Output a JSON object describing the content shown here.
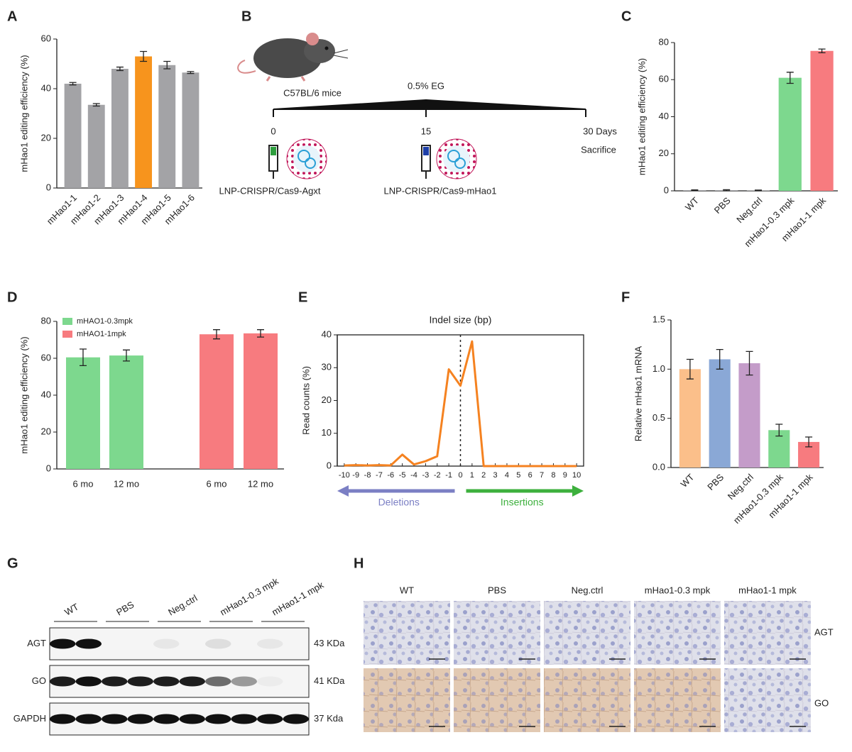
{
  "chart_data": [
    {
      "label": "A",
      "type": "bar",
      "ylabel": "mHao1 editing efficiency (%)",
      "categories": [
        "mHao1-1",
        "mHao1-2",
        "mHao1-3",
        "mHao1-4",
        "mHao1-5",
        "mHao1-6"
      ],
      "values": [
        42,
        33.5,
        48,
        53,
        49.5,
        46.5
      ],
      "errors": [
        0.5,
        0.5,
        0.7,
        2,
        1.5,
        0.4
      ],
      "colors": [
        "#a3a3a6",
        "#a3a3a6",
        "#a3a3a6",
        "#f7941d",
        "#a3a3a6",
        "#a3a3a6"
      ],
      "ylim": [
        0,
        60
      ],
      "yticks": [
        0,
        20,
        40,
        60
      ]
    },
    {
      "label": "C",
      "type": "bar",
      "ylabel": "mHao1 editing efficiency (%)",
      "categories": [
        "WT",
        "PBS",
        "Neg.ctrl",
        "mHao1-0.3 mpk",
        "mHao1-1 mpk"
      ],
      "values": [
        0.3,
        0.3,
        0.2,
        61,
        75.5
      ],
      "errors": [
        0.2,
        0.3,
        0.2,
        3,
        1
      ],
      "colors": [
        "#a3a3a6",
        "#a3a3a6",
        "#a3a3a6",
        "#7dd88e",
        "#f77b7f"
      ],
      "ylim": [
        0,
        80
      ],
      "yticks": [
        0,
        20,
        40,
        60,
        80
      ]
    },
    {
      "label": "D",
      "type": "grouped-bar",
      "ylabel": "mHao1 editing efficiency (%)",
      "categories": [
        "6 mo",
        "12 mo",
        "6 mo",
        "12 mo"
      ],
      "series": [
        {
          "name": "mHAO1-0.3mpk",
          "color": "#7dd88e",
          "values": [
            60.5,
            61.5,
            null,
            null
          ],
          "errors": [
            4.5,
            3,
            null,
            null
          ]
        },
        {
          "name": "mHAO1-1mpk",
          "color": "#f77b7f",
          "values": [
            null,
            null,
            73,
            73.5
          ],
          "errors": [
            null,
            null,
            2.5,
            2
          ]
        }
      ],
      "ylim": [
        0,
        80
      ],
      "yticks": [
        0,
        20,
        40,
        60,
        80
      ]
    },
    {
      "label": "E",
      "type": "line",
      "title": "Indel size (bp)",
      "ylabel": "Read counts (%)",
      "x": [
        -10,
        -9,
        -8,
        -7,
        -6,
        -5,
        -4,
        -3,
        -2,
        -1,
        0,
        1,
        2,
        3,
        4,
        5,
        6,
        7,
        8,
        9,
        10
      ],
      "values": [
        0.2,
        0.3,
        0.2,
        0.3,
        0.2,
        3.5,
        0.5,
        1.5,
        3,
        29.5,
        24.5,
        38,
        0,
        0,
        0,
        0,
        0,
        0,
        0,
        0,
        0
      ],
      "color": "#f58220",
      "xlim": [
        -10.6,
        10.6
      ],
      "ylim": [
        0,
        40
      ],
      "xticks": [
        -10,
        -9,
        -8,
        -7,
        -6,
        -5,
        -4,
        -3,
        -2,
        -1,
        0,
        1,
        2,
        3,
        4,
        5,
        6,
        7,
        8,
        9,
        10
      ],
      "yticks": [
        0,
        10,
        20,
        30,
        40
      ],
      "annotations": [
        {
          "text": "Deletions",
          "color": "#7b7fc4"
        },
        {
          "text": "Insertions",
          "color": "#3db03d"
        }
      ]
    },
    {
      "label": "F",
      "type": "bar",
      "ylabel": "Relative mHao1 mRNA",
      "categories": [
        "WT",
        "PBS",
        "Neg.ctrl",
        "mHao1-0.3 mpk",
        "mHao1-1 mpk"
      ],
      "values": [
        1.0,
        1.1,
        1.06,
        0.38,
        0.26
      ],
      "errors": [
        0.1,
        0.1,
        0.12,
        0.06,
        0.05
      ],
      "colors": [
        "#fbbf8a",
        "#8aa8d6",
        "#c49cc9",
        "#7dd88e",
        "#f77b7f"
      ],
      "ylim": [
        0,
        1.5
      ],
      "yticks": [
        {
          "value": 0,
          "label": "0.0"
        },
        {
          "value": 0.5,
          "label": "0.5"
        },
        {
          "value": 1,
          "label": "1.0"
        },
        {
          "value": 1.5,
          "label": "1.5"
        }
      ]
    }
  ],
  "panel_b": {
    "label": "B",
    "mouse": "C57BL/6 mice",
    "treatment": "0.5% EG",
    "timepoints": [
      "0",
      "15",
      "30 Days"
    ],
    "endpoint": "Sacrifice",
    "injections": [
      "LNP-CRISPR/Cas9-Agxt",
      "LNP-CRISPR/Cas9-mHao1"
    ]
  },
  "panel_g": {
    "label": "G",
    "groups": [
      "WT",
      "PBS",
      "Neg.ctrl",
      "mHao1-0.3 mpk",
      "mHao1-1 mpk"
    ],
    "rows": [
      {
        "name": "AGT",
        "size": "43 KDa"
      },
      {
        "name": "GO",
        "size": "41 KDa"
      },
      {
        "name": "GAPDH",
        "size": "37 Kda"
      }
    ]
  },
  "panel_h": {
    "label": "H",
    "columns": [
      "WT",
      "PBS",
      "Neg.ctrl",
      "mHao1-0.3 mpk",
      "mHao1-1 mpk"
    ],
    "rows": [
      "AGT",
      "GO"
    ]
  }
}
